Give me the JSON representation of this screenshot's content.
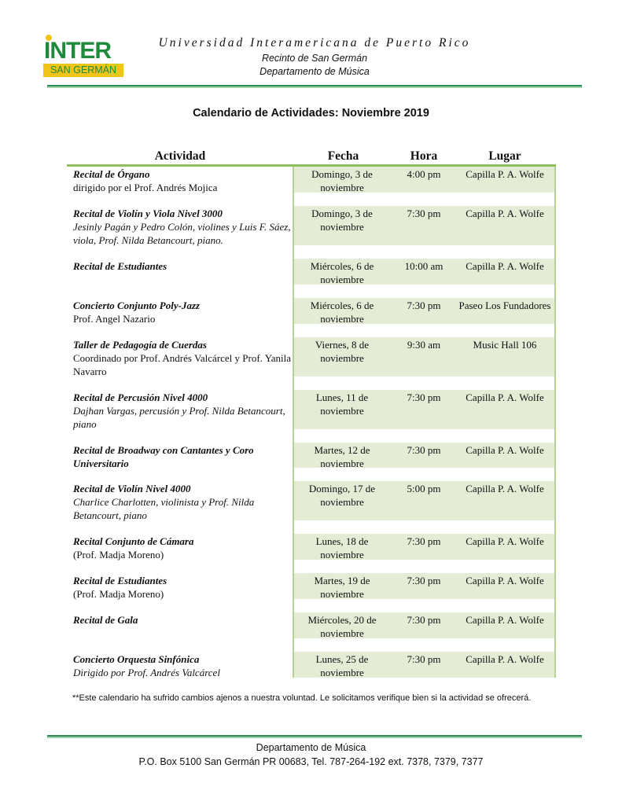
{
  "logo": {
    "top": "INTER",
    "bottom": "SAN GERMÁN"
  },
  "header": {
    "university": "Universidad Interamericana de Puerto Rico",
    "campus": "Recinto de San Germán",
    "department": "Departamento de Música"
  },
  "title": "Calendario de Actividades: Noviembre 2019",
  "columns": [
    "Actividad",
    "Fecha",
    "Hora",
    "Lugar"
  ],
  "rows": [
    {
      "title": "Recital de Órgano",
      "detail": "dirigido por el Prof. Andrés Mojica",
      "detail_italic": false,
      "fecha": "Domingo, 3 de noviembre",
      "hora": "4:00 pm",
      "lugar": "Capilla P. A. Wolfe"
    },
    {
      "title": "Recital de Violín y Viola Nivel 3000",
      "detail": "Jesinly Pagán y Pedro Colón, violines y Luis F. Sáez, viola, Prof. Nilda Betancourt, piano.",
      "detail_italic": true,
      "fecha": "Domingo, 3 de noviembre",
      "hora": "7:30 pm",
      "lugar": "Capilla P. A. Wolfe"
    },
    {
      "title": "Recital de Estudiantes",
      "detail": "",
      "detail_italic": false,
      "fecha": "Miércoles, 6 de noviembre",
      "hora": "10:00 am",
      "lugar": "Capilla P. A. Wolfe"
    },
    {
      "title": "Concierto Conjunto Poly-Jazz",
      "detail": "Prof. Angel Nazario",
      "detail_italic": false,
      "fecha": "Miércoles, 6 de noviembre",
      "hora": "7:30 pm",
      "lugar": "Paseo Los Fundadores"
    },
    {
      "title": "Taller de Pedagogía de Cuerdas",
      "detail": "Coordinado por Prof. Andrés Valcárcel y Prof. Yanila Navarro",
      "detail_italic": false,
      "fecha": "Viernes, 8 de noviembre",
      "hora": "9:30 am",
      "lugar": "Music Hall 106"
    },
    {
      "title": "Recital de Percusión Nivel 4000",
      "detail": "Dajhan Vargas, percusión y Prof. Nilda Betancourt, piano",
      "detail_italic": true,
      "fecha": "Lunes, 11 de noviembre",
      "hora": "7:30 pm",
      "lugar": "Capilla P. A. Wolfe"
    },
    {
      "title": "Recital de Broadway con Cantantes y Coro Universitario",
      "detail": "",
      "detail_italic": false,
      "fecha": "Martes, 12 de noviembre",
      "hora": "7:30 pm",
      "lugar": "Capilla P. A. Wolfe"
    },
    {
      "title": "Recital de Violín Nivel 4000",
      "detail": "Charlice Charlotten, violinista y Prof. Nilda Betancourt, piano",
      "detail_italic": true,
      "fecha": "Domingo, 17 de noviembre",
      "hora": "5:00 pm",
      "lugar": "Capilla P. A. Wolfe"
    },
    {
      "title": "Recital Conjunto de Cámara",
      "detail": "(Prof. Madja Moreno)",
      "detail_italic": false,
      "fecha": "Lunes, 18 de noviembre",
      "hora": "7:30 pm",
      "lugar": "Capilla P. A. Wolfe"
    },
    {
      "title": "Recital de Estudiantes",
      "detail": "(Prof. Madja Moreno)",
      "detail_italic": false,
      "fecha": "Martes, 19 de noviembre",
      "hora": "7:30 pm",
      "lugar": "Capilla P. A. Wolfe"
    },
    {
      "title": "Recital de Gala",
      "detail": "",
      "detail_italic": false,
      "fecha": "Miércoles, 20 de noviembre",
      "hora": "7:30 pm",
      "lugar": "Capilla P. A. Wolfe"
    },
    {
      "title": "Concierto Orquesta Sinfónica",
      "detail": "Dirigido por Prof.  Andrés Valcárcel",
      "detail_italic": true,
      "fecha": "Lunes, 25 de noviembre",
      "hora": "7:30 pm",
      "lugar": "Capilla P. A. Wolfe"
    }
  ],
  "note": "**Este calendario ha sufrido cambios ajenos a nuestra voluntad.  Le solicitamos verifique bien si la actividad se ofrecerá.",
  "footer": {
    "department": "Departamento de Música",
    "address": "P.O. Box 5100 San Germán  PR  00683, Tel. 787-264-192 ext. 7378, 7379, 7377"
  },
  "colors": {
    "green": "#2e8b57",
    "shade": "#e4ecd6",
    "logo_yellow": "#f0c419"
  }
}
